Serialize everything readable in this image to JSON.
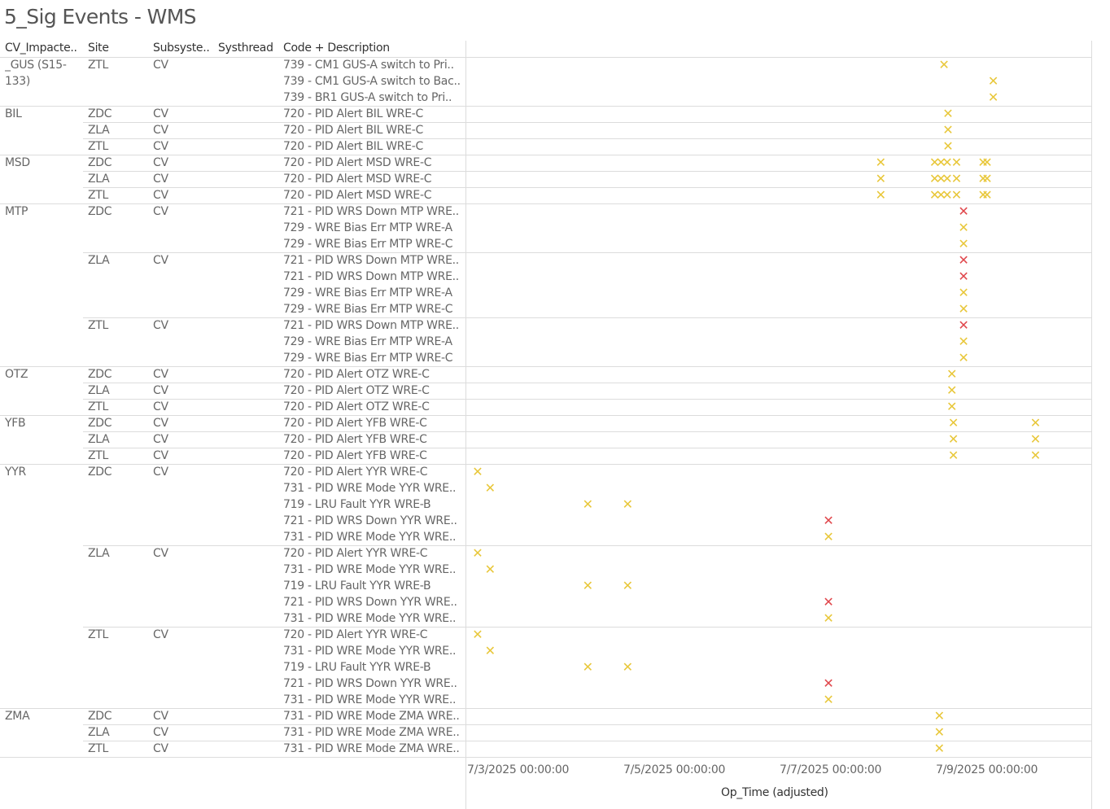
{
  "title": "5_Sig Events - WMS",
  "headers": {
    "cv": "CV_Impacte..",
    "site": "Site",
    "subsystem": "Subsyste..",
    "systhread": "Systhread",
    "code": "Code + Description"
  },
  "colors": {
    "warning": "#e8c73a",
    "critical": "#e0474c"
  },
  "chart_data": {
    "type": "scatter",
    "xlabel": "Op_Time (adjusted)",
    "xticks": [
      "7/3/2025 00:00:00",
      "7/5/2025 00:00:00",
      "7/7/2025 00:00:00",
      "7/9/2025 00:00:00"
    ],
    "xlim_days": [
      2.6,
      10.0
    ],
    "groups": [
      {
        "cv": "_GUS (S15-133)",
        "rows": [
          {
            "site": "ZTL",
            "sub": "CV",
            "code": "739 - CM1 GUS-A switch to Pri..",
            "points": [
              {
                "x": 8.72,
                "s": "y"
              }
            ]
          },
          {
            "site": "",
            "sub": "",
            "code": "739 - CM1 GUS-A switch to Bac..",
            "points": [
              {
                "x": 9.35,
                "s": "y"
              }
            ]
          },
          {
            "site": "",
            "sub": "",
            "code": "739 - BR1 GUS-A switch to Pri..",
            "points": [
              {
                "x": 9.35,
                "s": "y"
              }
            ]
          }
        ]
      },
      {
        "cv": "BIL",
        "rows": [
          {
            "site": "ZDC",
            "sub": "CV",
            "code": "720 - PID Alert BIL WRE-C",
            "points": [
              {
                "x": 8.77,
                "s": "y"
              }
            ]
          },
          {
            "site": "ZLA",
            "sub": "CV",
            "code": "720 - PID Alert BIL WRE-C",
            "points": [
              {
                "x": 8.77,
                "s": "y"
              }
            ]
          },
          {
            "site": "ZTL",
            "sub": "CV",
            "code": "720 - PID Alert BIL WRE-C",
            "points": [
              {
                "x": 8.77,
                "s": "y"
              }
            ]
          }
        ]
      },
      {
        "cv": "MSD",
        "rows": [
          {
            "site": "ZDC",
            "sub": "CV",
            "code": "720 - PID Alert MSD WRE-C",
            "points": [
              {
                "x": 7.91,
                "s": "y"
              },
              {
                "x": 8.6,
                "s": "y"
              },
              {
                "x": 8.68,
                "s": "y"
              },
              {
                "x": 8.76,
                "s": "y"
              },
              {
                "x": 8.88,
                "s": "y"
              },
              {
                "x": 9.22,
                "s": "y"
              },
              {
                "x": 9.27,
                "s": "y"
              }
            ]
          },
          {
            "site": "ZLA",
            "sub": "CV",
            "code": "720 - PID Alert MSD WRE-C",
            "points": [
              {
                "x": 7.91,
                "s": "y"
              },
              {
                "x": 8.6,
                "s": "y"
              },
              {
                "x": 8.68,
                "s": "y"
              },
              {
                "x": 8.76,
                "s": "y"
              },
              {
                "x": 8.88,
                "s": "y"
              },
              {
                "x": 9.22,
                "s": "y"
              },
              {
                "x": 9.27,
                "s": "y"
              }
            ]
          },
          {
            "site": "ZTL",
            "sub": "CV",
            "code": "720 - PID Alert MSD WRE-C",
            "points": [
              {
                "x": 7.91,
                "s": "y"
              },
              {
                "x": 8.6,
                "s": "y"
              },
              {
                "x": 8.68,
                "s": "y"
              },
              {
                "x": 8.76,
                "s": "y"
              },
              {
                "x": 8.88,
                "s": "y"
              },
              {
                "x": 9.22,
                "s": "y"
              },
              {
                "x": 9.27,
                "s": "y"
              }
            ]
          }
        ]
      },
      {
        "cv": "MTP",
        "rows": [
          {
            "site": "ZDC",
            "sub": "CV",
            "code": "721 - PID WRS Down MTP WRE..",
            "points": [
              {
                "x": 8.97,
                "s": "r"
              }
            ]
          },
          {
            "site": "",
            "sub": "",
            "code": "729 - WRE Bias Err MTP WRE-A",
            "points": [
              {
                "x": 8.97,
                "s": "y"
              }
            ]
          },
          {
            "site": "",
            "sub": "",
            "code": "729 - WRE Bias Err MTP WRE-C",
            "points": [
              {
                "x": 8.97,
                "s": "y"
              }
            ]
          },
          {
            "site": "ZLA",
            "sub": "CV",
            "code": "721 - PID WRS Down MTP WRE..",
            "points": [
              {
                "x": 8.97,
                "s": "r"
              }
            ]
          },
          {
            "site": "",
            "sub": "",
            "code": "721 - PID WRS Down MTP WRE..",
            "points": [
              {
                "x": 8.97,
                "s": "r"
              }
            ]
          },
          {
            "site": "",
            "sub": "",
            "code": "729 - WRE Bias Err MTP WRE-A",
            "points": [
              {
                "x": 8.97,
                "s": "y"
              }
            ]
          },
          {
            "site": "",
            "sub": "",
            "code": "729 - WRE Bias Err MTP WRE-C",
            "points": [
              {
                "x": 8.97,
                "s": "y"
              }
            ]
          },
          {
            "site": "ZTL",
            "sub": "CV",
            "code": "721 - PID WRS Down MTP WRE..",
            "points": [
              {
                "x": 8.97,
                "s": "r"
              }
            ]
          },
          {
            "site": "",
            "sub": "",
            "code": "729 - WRE Bias Err MTP WRE-A",
            "points": [
              {
                "x": 8.97,
                "s": "y"
              }
            ]
          },
          {
            "site": "",
            "sub": "",
            "code": "729 - WRE Bias Err MTP WRE-C",
            "points": [
              {
                "x": 8.97,
                "s": "y"
              }
            ]
          }
        ]
      },
      {
        "cv": "OTZ",
        "rows": [
          {
            "site": "ZDC",
            "sub": "CV",
            "code": "720 - PID Alert OTZ WRE-C",
            "points": [
              {
                "x": 8.82,
                "s": "y"
              }
            ]
          },
          {
            "site": "ZLA",
            "sub": "CV",
            "code": "720 - PID Alert OTZ WRE-C",
            "points": [
              {
                "x": 8.82,
                "s": "y"
              }
            ]
          },
          {
            "site": "ZTL",
            "sub": "CV",
            "code": "720 - PID Alert OTZ WRE-C",
            "points": [
              {
                "x": 8.82,
                "s": "y"
              }
            ]
          }
        ]
      },
      {
        "cv": "YFB",
        "rows": [
          {
            "site": "ZDC",
            "sub": "CV",
            "code": "720 - PID Alert YFB WRE-C",
            "points": [
              {
                "x": 8.84,
                "s": "y"
              },
              {
                "x": 9.89,
                "s": "y"
              }
            ]
          },
          {
            "site": "ZLA",
            "sub": "CV",
            "code": "720 - PID Alert YFB WRE-C",
            "points": [
              {
                "x": 8.84,
                "s": "y"
              },
              {
                "x": 9.89,
                "s": "y"
              }
            ]
          },
          {
            "site": "ZTL",
            "sub": "CV",
            "code": "720 - PID Alert YFB WRE-C",
            "points": [
              {
                "x": 8.84,
                "s": "y"
              },
              {
                "x": 9.89,
                "s": "y"
              }
            ]
          }
        ]
      },
      {
        "cv": "YYR",
        "rows": [
          {
            "site": "ZDC",
            "sub": "CV",
            "code": "720 - PID Alert YYR WRE-C",
            "points": [
              {
                "x": 2.75,
                "s": "y"
              }
            ]
          },
          {
            "site": "",
            "sub": "",
            "code": "731 - PID WRE Mode YYR WRE..",
            "points": [
              {
                "x": 2.91,
                "s": "y"
              }
            ]
          },
          {
            "site": "",
            "sub": "",
            "code": "719 - LRU Fault YYR WRE-B",
            "points": [
              {
                "x": 4.16,
                "s": "y"
              },
              {
                "x": 4.67,
                "s": "y"
              }
            ]
          },
          {
            "site": "",
            "sub": "",
            "code": "721 - PID WRS Down YYR WRE..",
            "points": [
              {
                "x": 7.24,
                "s": "r"
              }
            ]
          },
          {
            "site": "",
            "sub": "",
            "code": "731 - PID WRE Mode YYR WRE..",
            "points": [
              {
                "x": 7.24,
                "s": "y"
              }
            ]
          },
          {
            "site": "ZLA",
            "sub": "CV",
            "code": "720 - PID Alert YYR WRE-C",
            "points": [
              {
                "x": 2.75,
                "s": "y"
              }
            ]
          },
          {
            "site": "",
            "sub": "",
            "code": "731 - PID WRE Mode YYR WRE..",
            "points": [
              {
                "x": 2.91,
                "s": "y"
              }
            ]
          },
          {
            "site": "",
            "sub": "",
            "code": "719 - LRU Fault YYR WRE-B",
            "points": [
              {
                "x": 4.16,
                "s": "y"
              },
              {
                "x": 4.67,
                "s": "y"
              }
            ]
          },
          {
            "site": "",
            "sub": "",
            "code": "721 - PID WRS Down YYR WRE..",
            "points": [
              {
                "x": 7.24,
                "s": "r"
              }
            ]
          },
          {
            "site": "",
            "sub": "",
            "code": "731 - PID WRE Mode YYR WRE..",
            "points": [
              {
                "x": 7.24,
                "s": "y"
              }
            ]
          },
          {
            "site": "ZTL",
            "sub": "CV",
            "code": "720 - PID Alert YYR WRE-C",
            "points": [
              {
                "x": 2.75,
                "s": "y"
              }
            ]
          },
          {
            "site": "",
            "sub": "",
            "code": "731 - PID WRE Mode YYR WRE..",
            "points": [
              {
                "x": 2.91,
                "s": "y"
              }
            ]
          },
          {
            "site": "",
            "sub": "",
            "code": "719 - LRU Fault YYR WRE-B",
            "points": [
              {
                "x": 4.16,
                "s": "y"
              },
              {
                "x": 4.67,
                "s": "y"
              }
            ]
          },
          {
            "site": "",
            "sub": "",
            "code": "721 - PID WRS Down YYR WRE..",
            "points": [
              {
                "x": 7.24,
                "s": "r"
              }
            ]
          },
          {
            "site": "",
            "sub": "",
            "code": "731 - PID WRE Mode YYR WRE..",
            "points": [
              {
                "x": 7.24,
                "s": "y"
              }
            ]
          }
        ]
      },
      {
        "cv": "ZMA",
        "rows": [
          {
            "site": "ZDC",
            "sub": "CV",
            "code": "731 - PID WRE Mode ZMA WRE..",
            "points": [
              {
                "x": 8.66,
                "s": "y"
              }
            ]
          },
          {
            "site": "ZLA",
            "sub": "CV",
            "code": "731 - PID WRE Mode ZMA WRE..",
            "points": [
              {
                "x": 8.66,
                "s": "y"
              }
            ]
          },
          {
            "site": "ZTL",
            "sub": "CV",
            "code": "731 - PID WRE Mode ZMA WRE..",
            "points": [
              {
                "x": 8.66,
                "s": "y"
              }
            ]
          }
        ]
      }
    ]
  }
}
